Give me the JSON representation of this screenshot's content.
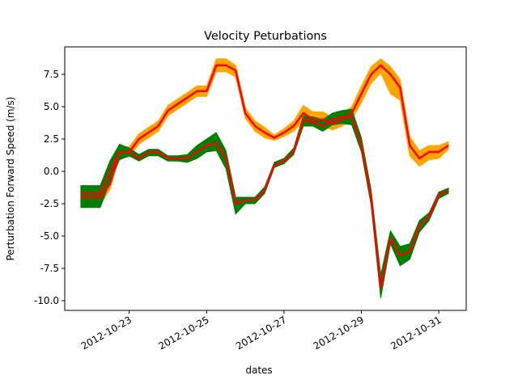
{
  "chart_data": {
    "type": "band-line",
    "title": "Velocity Peturbations",
    "xlabel": "dates",
    "ylabel": "Perturbation Forward Speed (m/s)",
    "x": [
      "2012-10-21 18:00",
      "2012-10-22 00:00",
      "2012-10-22 06:00",
      "2012-10-22 12:00",
      "2012-10-22 18:00",
      "2012-10-23 00:00",
      "2012-10-23 06:00",
      "2012-10-23 12:00",
      "2012-10-23 18:00",
      "2012-10-24 00:00",
      "2012-10-24 06:00",
      "2012-10-24 12:00",
      "2012-10-24 18:00",
      "2012-10-25 00:00",
      "2012-10-25 06:00",
      "2012-10-25 12:00",
      "2012-10-25 18:00",
      "2012-10-26 00:00",
      "2012-10-26 06:00",
      "2012-10-26 12:00",
      "2012-10-26 18:00",
      "2012-10-27 00:00",
      "2012-10-27 06:00",
      "2012-10-27 12:00",
      "2012-10-27 18:00",
      "2012-10-28 00:00",
      "2012-10-28 06:00",
      "2012-10-28 12:00",
      "2012-10-28 18:00",
      "2012-10-29 00:00",
      "2012-10-29 06:00",
      "2012-10-29 12:00",
      "2012-10-29 18:00",
      "2012-10-30 00:00",
      "2012-10-30 06:00",
      "2012-10-30 12:00",
      "2012-10-30 18:00",
      "2012-10-31 00:00",
      "2012-10-31 06:00"
    ],
    "series": [
      {
        "color": "#ffa500",
        "line_color": "#ff0000",
        "values": [
          -2.0,
          -2.0,
          -2.0,
          -1.0,
          1.5,
          1.5,
          2.5,
          3.0,
          3.5,
          4.7,
          5.2,
          5.7,
          6.2,
          6.2,
          8.2,
          8.2,
          7.8,
          4.5,
          3.5,
          3.0,
          2.6,
          3.0,
          3.5,
          4.5,
          4.0,
          4.0,
          3.7,
          4.0,
          4.5,
          6.0,
          7.5,
          8.2,
          7.5,
          6.5,
          2.0,
          1.0,
          1.5,
          1.5,
          2.0
        ],
        "lower": [
          -2.6,
          -2.6,
          -2.6,
          -1.4,
          1.1,
          1.1,
          2.1,
          2.6,
          3.1,
          4.3,
          4.8,
          5.3,
          5.8,
          5.8,
          7.7,
          7.7,
          7.3,
          4.1,
          3.1,
          2.6,
          2.4,
          2.7,
          3.1,
          3.9,
          3.5,
          3.5,
          3.2,
          3.5,
          4.0,
          5.3,
          6.8,
          7.6,
          6.0,
          5.5,
          1.2,
          0.4,
          0.9,
          1.0,
          1.7
        ],
        "upper": [
          -1.4,
          -1.4,
          -1.4,
          -0.6,
          1.9,
          1.9,
          2.9,
          3.4,
          3.9,
          5.1,
          5.6,
          6.1,
          6.6,
          6.6,
          8.7,
          8.7,
          8.2,
          4.9,
          3.9,
          3.4,
          2.8,
          3.3,
          3.9,
          5.1,
          4.6,
          4.6,
          4.2,
          4.5,
          5.0,
          6.6,
          8.1,
          8.7,
          8.1,
          7.1,
          2.7,
          1.6,
          2.0,
          2.0,
          2.3
        ]
      },
      {
        "color": "#008000",
        "line_color": "#ff0000",
        "values": [
          -1.7,
          -1.7,
          -1.7,
          0,
          1.5,
          1.5,
          1.0,
          1.5,
          1.5,
          1.0,
          1.0,
          1.0,
          1.5,
          2.0,
          2.2,
          1.0,
          -2.5,
          -2.2,
          -2.2,
          -1.5,
          0.5,
          0.8,
          1.5,
          4.0,
          3.8,
          3.5,
          4.0,
          4.2,
          4.2,
          2.0,
          -2.0,
          -9.0,
          -5.2,
          -6.5,
          -6.2,
          -4.2,
          -3.5,
          -1.8,
          -1.5
        ],
        "lower": [
          -2.8,
          -2.8,
          -2.8,
          -0.8,
          0.9,
          1.2,
          0.8,
          1.2,
          1.2,
          0.8,
          0.8,
          0.7,
          1.0,
          1.5,
          1.6,
          0.2,
          -3.3,
          -2.5,
          -2.5,
          -1.7,
          0.3,
          0.6,
          1.3,
          3.5,
          3.5,
          3.1,
          3.6,
          3.7,
          3.6,
          1.5,
          -2.6,
          -9.8,
          -5.6,
          -7.3,
          -6.8,
          -4.7,
          -3.8,
          -2.1,
          -1.7
        ],
        "upper": [
          -1.1,
          -1.1,
          -1.1,
          0.8,
          2.1,
          1.8,
          1.3,
          1.7,
          1.7,
          1.2,
          1.2,
          1.3,
          2.0,
          2.5,
          3.0,
          1.6,
          -2.0,
          -2.0,
          -2.0,
          -1.2,
          0.7,
          1.0,
          1.8,
          4.3,
          4.2,
          4.0,
          4.5,
          4.7,
          4.8,
          2.6,
          -1.4,
          -8.0,
          -4.6,
          -5.8,
          -5.6,
          -3.8,
          -3.2,
          -1.6,
          -1.3
        ]
      }
    ],
    "xlim": [
      "2012-10-21 08:00",
      "2012-10-31 17:00"
    ],
    "xticks": [
      "2012-10-23",
      "2012-10-25",
      "2012-10-27",
      "2012-10-29",
      "2012-10-31"
    ],
    "ylim": [
      -10.75,
      9.625
    ],
    "yticks": [
      {
        "value": -10,
        "label": "-10.0"
      },
      -7.5,
      {
        "value": -5,
        "label": "-5.0"
      },
      -2.5,
      {
        "value": 0,
        "label": "0.0"
      },
      2.5,
      {
        "value": 5,
        "label": "5.0"
      },
      7.5
    ],
    "grid": false
  }
}
